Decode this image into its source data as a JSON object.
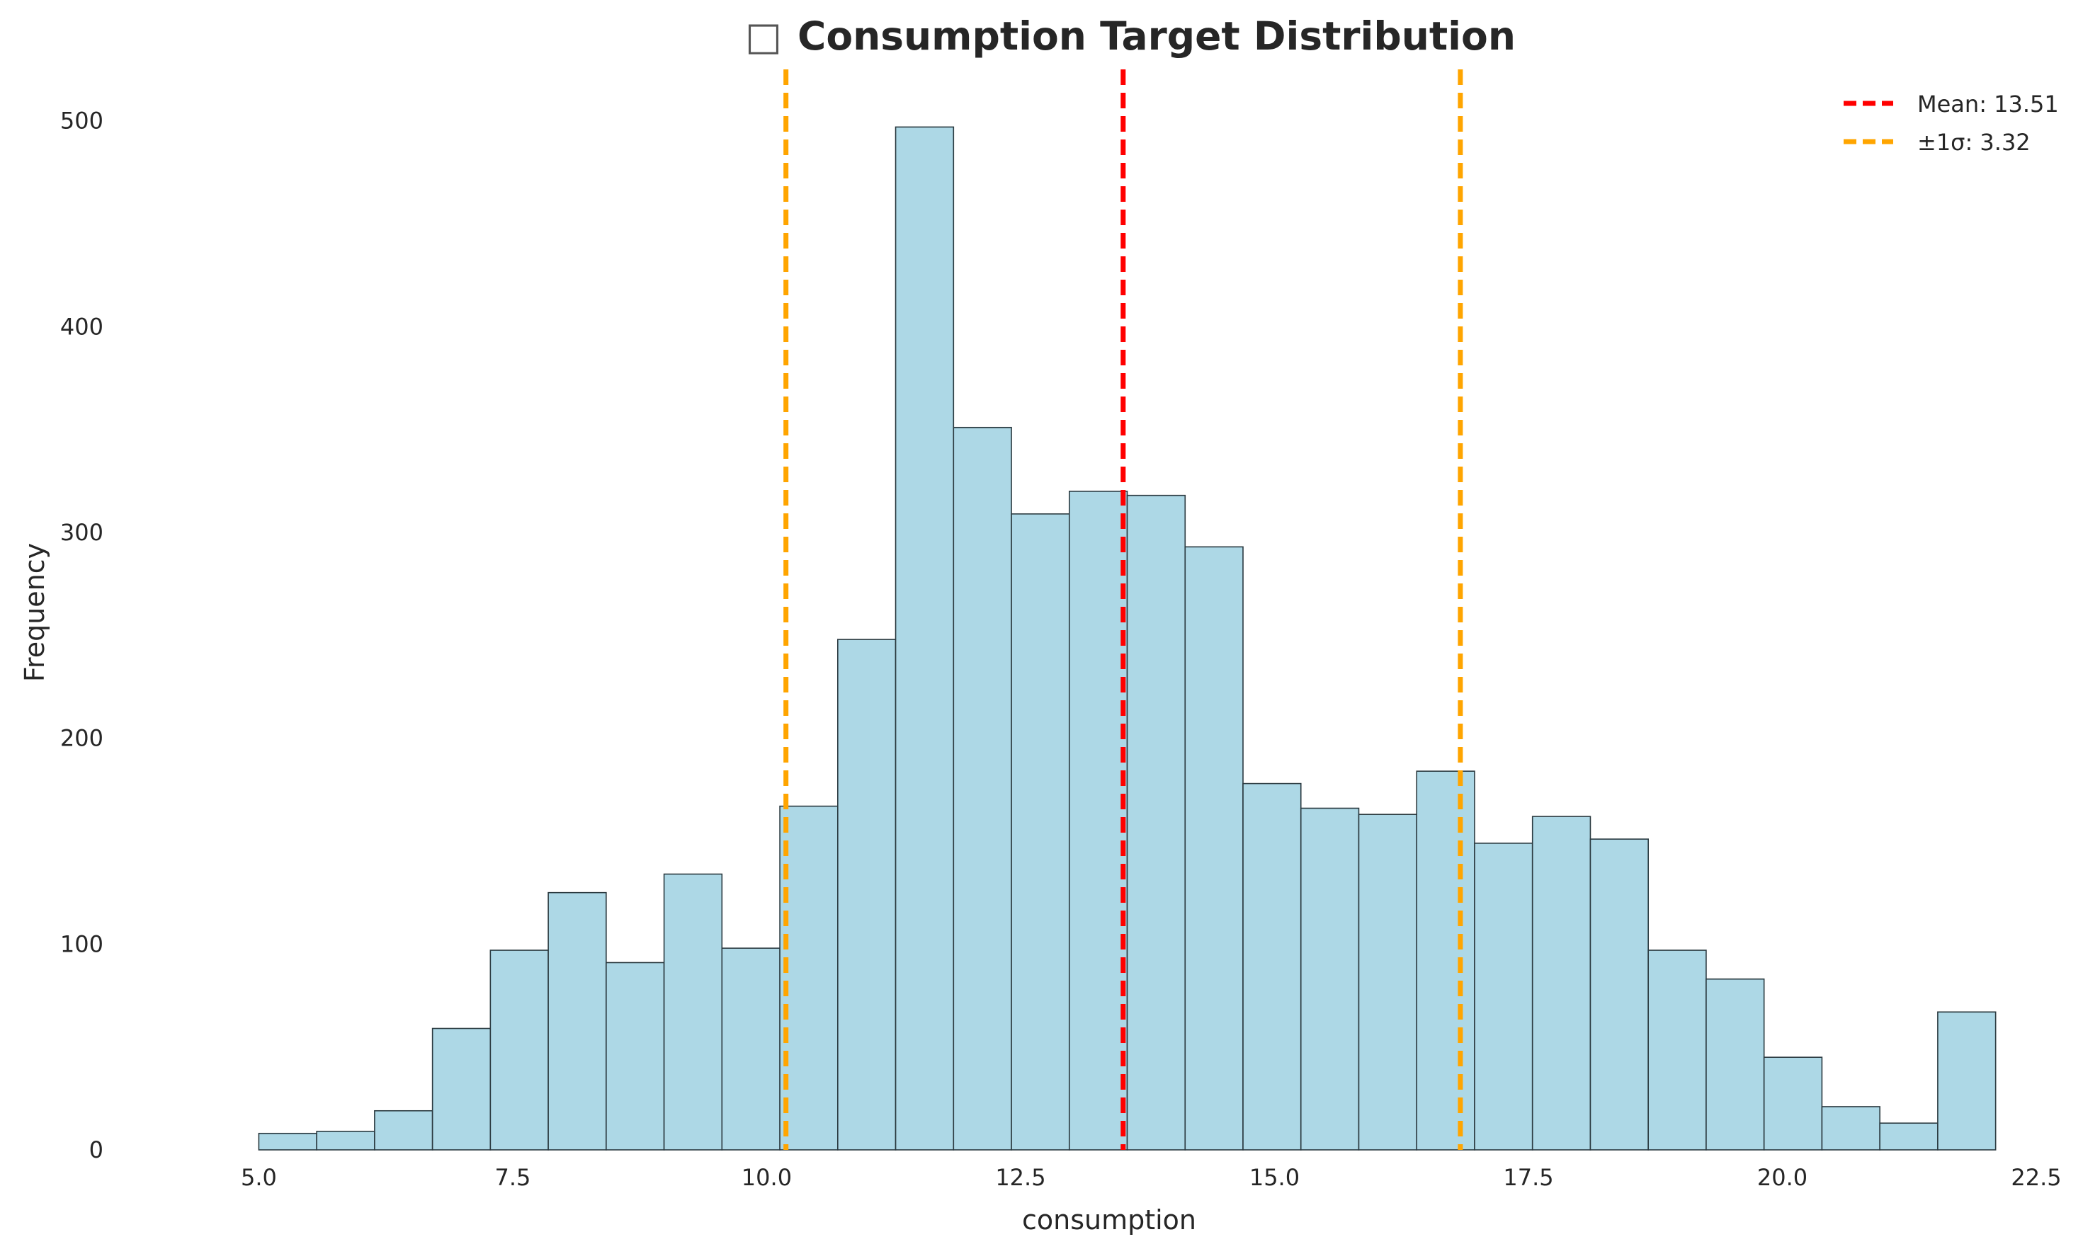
{
  "colors": {
    "bar_fill": "#add8e6",
    "bar_edge": "#2b3a40",
    "mean_line": "#ff0000",
    "std_line": "#ffa500",
    "text": "#262626"
  },
  "legend": {
    "mean_label": "Mean: 13.51",
    "std_label": "±1σ: 3.32",
    "placement": "top-right"
  },
  "chart_data": {
    "type": "bar",
    "title": "Consumption Target Distribution",
    "title_icon": "□",
    "xlabel": "consumption",
    "ylabel": "Frequency",
    "xlim": [
      4.0,
      22.5
    ],
    "ylim": [
      0,
      525
    ],
    "xticks": [
      "5.0",
      "7.5",
      "10.0",
      "12.5",
      "15.0",
      "17.5",
      "20.0",
      "22.5"
    ],
    "xtick_values": [
      5.0,
      7.5,
      10.0,
      12.5,
      15.0,
      17.5,
      20.0,
      22.5
    ],
    "yticks": [
      "0",
      "100",
      "200",
      "300",
      "400",
      "500"
    ],
    "ytick_values": [
      0,
      100,
      200,
      300,
      400,
      500
    ],
    "bin_start": 5.0,
    "bin_width": 0.57,
    "values": [
      8,
      9,
      19,
      59,
      97,
      125,
      91,
      134,
      98,
      167,
      248,
      497,
      351,
      309,
      320,
      318,
      293,
      178,
      166,
      163,
      184,
      149,
      162,
      151,
      97,
      83,
      45,
      21,
      13,
      67
    ],
    "mean": 13.51,
    "std": 3.32
  }
}
